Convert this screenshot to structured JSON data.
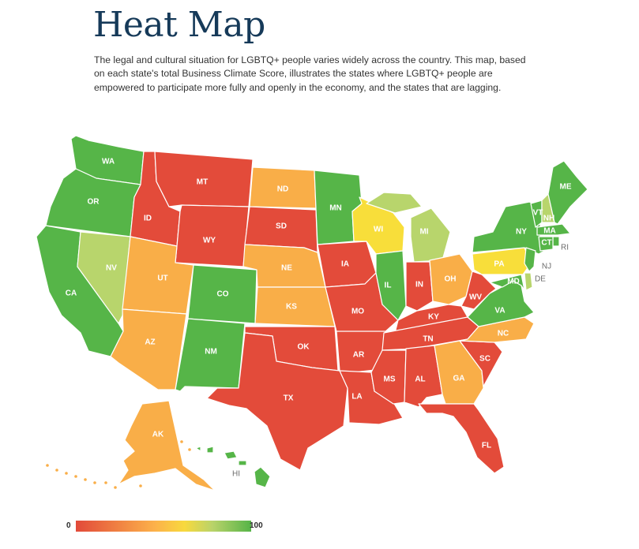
{
  "header": {
    "title": "Heat Map",
    "description": "The legal and cultural situation for LGBTQ+ people varies widely across the country. This map, based on each state's total Business Climate Score, illustrates the states where LGBTQ+ people are empowered to participate more fully and openly in the economy, and the states that are lagging."
  },
  "colors": {
    "red": "#e34b3a",
    "orange": "#f9ae48",
    "yellow": "#f8de3a",
    "lightgreen": "#b8d56c",
    "green": "#56b548"
  },
  "legend": {
    "min_label": "0",
    "max_label": "100"
  },
  "states": [
    {
      "abbr": "WA",
      "tier": "green"
    },
    {
      "abbr": "OR",
      "tier": "green"
    },
    {
      "abbr": "CA",
      "tier": "green"
    },
    {
      "abbr": "NV",
      "tier": "lightgreen"
    },
    {
      "abbr": "ID",
      "tier": "red"
    },
    {
      "abbr": "MT",
      "tier": "red"
    },
    {
      "abbr": "WY",
      "tier": "red"
    },
    {
      "abbr": "UT",
      "tier": "orange"
    },
    {
      "abbr": "AZ",
      "tier": "orange"
    },
    {
      "abbr": "CO",
      "tier": "green"
    },
    {
      "abbr": "NM",
      "tier": "green"
    },
    {
      "abbr": "ND",
      "tier": "orange"
    },
    {
      "abbr": "SD",
      "tier": "red"
    },
    {
      "abbr": "NE",
      "tier": "orange"
    },
    {
      "abbr": "KS",
      "tier": "orange"
    },
    {
      "abbr": "OK",
      "tier": "red"
    },
    {
      "abbr": "TX",
      "tier": "red"
    },
    {
      "abbr": "MN",
      "tier": "green"
    },
    {
      "abbr": "IA",
      "tier": "red"
    },
    {
      "abbr": "MO",
      "tier": "red"
    },
    {
      "abbr": "AR",
      "tier": "red"
    },
    {
      "abbr": "LA",
      "tier": "red"
    },
    {
      "abbr": "WI",
      "tier": "yellow"
    },
    {
      "abbr": "IL",
      "tier": "green"
    },
    {
      "abbr": "MI",
      "tier": "lightgreen"
    },
    {
      "abbr": "IN",
      "tier": "red"
    },
    {
      "abbr": "OH",
      "tier": "orange"
    },
    {
      "abbr": "KY",
      "tier": "red"
    },
    {
      "abbr": "TN",
      "tier": "red"
    },
    {
      "abbr": "MS",
      "tier": "red"
    },
    {
      "abbr": "AL",
      "tier": "red"
    },
    {
      "abbr": "GA",
      "tier": "orange"
    },
    {
      "abbr": "FL",
      "tier": "red"
    },
    {
      "abbr": "SC",
      "tier": "red"
    },
    {
      "abbr": "NC",
      "tier": "orange"
    },
    {
      "abbr": "VA",
      "tier": "green"
    },
    {
      "abbr": "WV",
      "tier": "red"
    },
    {
      "abbr": "PA",
      "tier": "yellow"
    },
    {
      "abbr": "NY",
      "tier": "green"
    },
    {
      "abbr": "VT",
      "tier": "green"
    },
    {
      "abbr": "NH",
      "tier": "lightgreen"
    },
    {
      "abbr": "ME",
      "tier": "green"
    },
    {
      "abbr": "MA",
      "tier": "green"
    },
    {
      "abbr": "RI",
      "tier": "green"
    },
    {
      "abbr": "CT",
      "tier": "green"
    },
    {
      "abbr": "NJ",
      "tier": "green"
    },
    {
      "abbr": "DE",
      "tier": "lightgreen"
    },
    {
      "abbr": "MD",
      "tier": "green"
    },
    {
      "abbr": "AK",
      "tier": "orange"
    },
    {
      "abbr": "HI",
      "tier": "green"
    }
  ]
}
